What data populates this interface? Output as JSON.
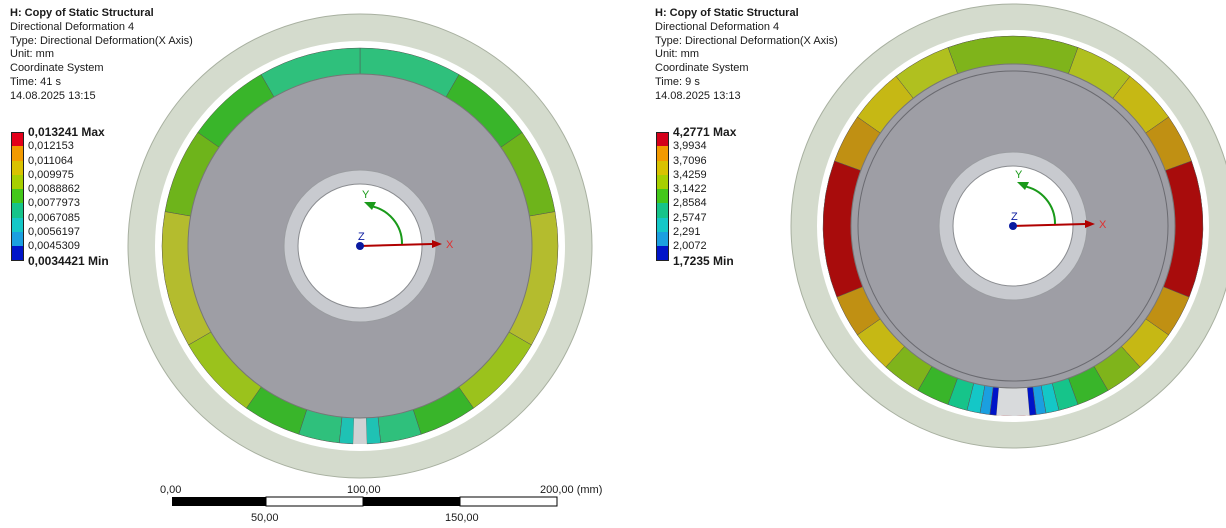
{
  "left": {
    "header": {
      "title": "H: Copy of Static Structural",
      "result": "Directional Deformation 4",
      "type": "Type: Directional Deformation(X Axis)",
      "unit": "Unit: mm",
      "coord": "Coordinate System",
      "time": "Time: 41 s",
      "date": "14.08.2025 13:15"
    },
    "legend": [
      {
        "label": "0,013241 Max",
        "color": "#e3001a"
      },
      {
        "label": "0,012153",
        "color": "#f29a00"
      },
      {
        "label": "0,011064",
        "color": "#d9c200"
      },
      {
        "label": "0,009975",
        "color": "#a7cf00"
      },
      {
        "label": "0,0088862",
        "color": "#43c71a"
      },
      {
        "label": "0,0077973",
        "color": "#16c48a"
      },
      {
        "label": "0,0067085",
        "color": "#14c7c7"
      },
      {
        "label": "0,0056197",
        "color": "#1b9fe0"
      },
      {
        "label": "0,0045309",
        "color": "#0014c8"
      },
      {
        "label": "0,0034421 Min",
        "color": null
      }
    ],
    "axes": {
      "x": "X",
      "y": "Y",
      "z": "Z"
    },
    "scale_bar": {
      "top_labels": [
        "0,00",
        "100,00",
        "200,00 (mm)"
      ],
      "bottom_labels": [
        "50,00",
        "150,00"
      ]
    },
    "ring_colors": [
      "#9bc21c",
      "#6eb41b",
      "#39b52a",
      "#2fc07c",
      "#1fc2b4",
      "#b4bc2e",
      "#c7b823"
    ]
  },
  "right": {
    "header": {
      "title": "H: Copy of Static Structural",
      "result": "Directional Deformation 4",
      "type": "Type: Directional Deformation(X Axis)",
      "unit": "Unit: mm",
      "coord": "Coordinate System",
      "time": "Time: 9 s",
      "date": "14.08.2025 13:13"
    },
    "legend": [
      {
        "label": "4,2771 Max",
        "color": "#d4001a"
      },
      {
        "label": "3,9934",
        "color": "#f29a00"
      },
      {
        "label": "3,7096",
        "color": "#d9c200"
      },
      {
        "label": "3,4259",
        "color": "#a7cf00"
      },
      {
        "label": "3,1422",
        "color": "#43c71a"
      },
      {
        "label": "2,8584",
        "color": "#16c48a"
      },
      {
        "label": "2,5747",
        "color": "#14c7c7"
      },
      {
        "label": "2,291",
        "color": "#1b9fe0"
      },
      {
        "label": "2,0072",
        "color": "#0014c8"
      },
      {
        "label": "1,7235 Min",
        "color": null
      }
    ],
    "axes": {
      "x": "X",
      "y": "Y",
      "z": "Z"
    }
  }
}
